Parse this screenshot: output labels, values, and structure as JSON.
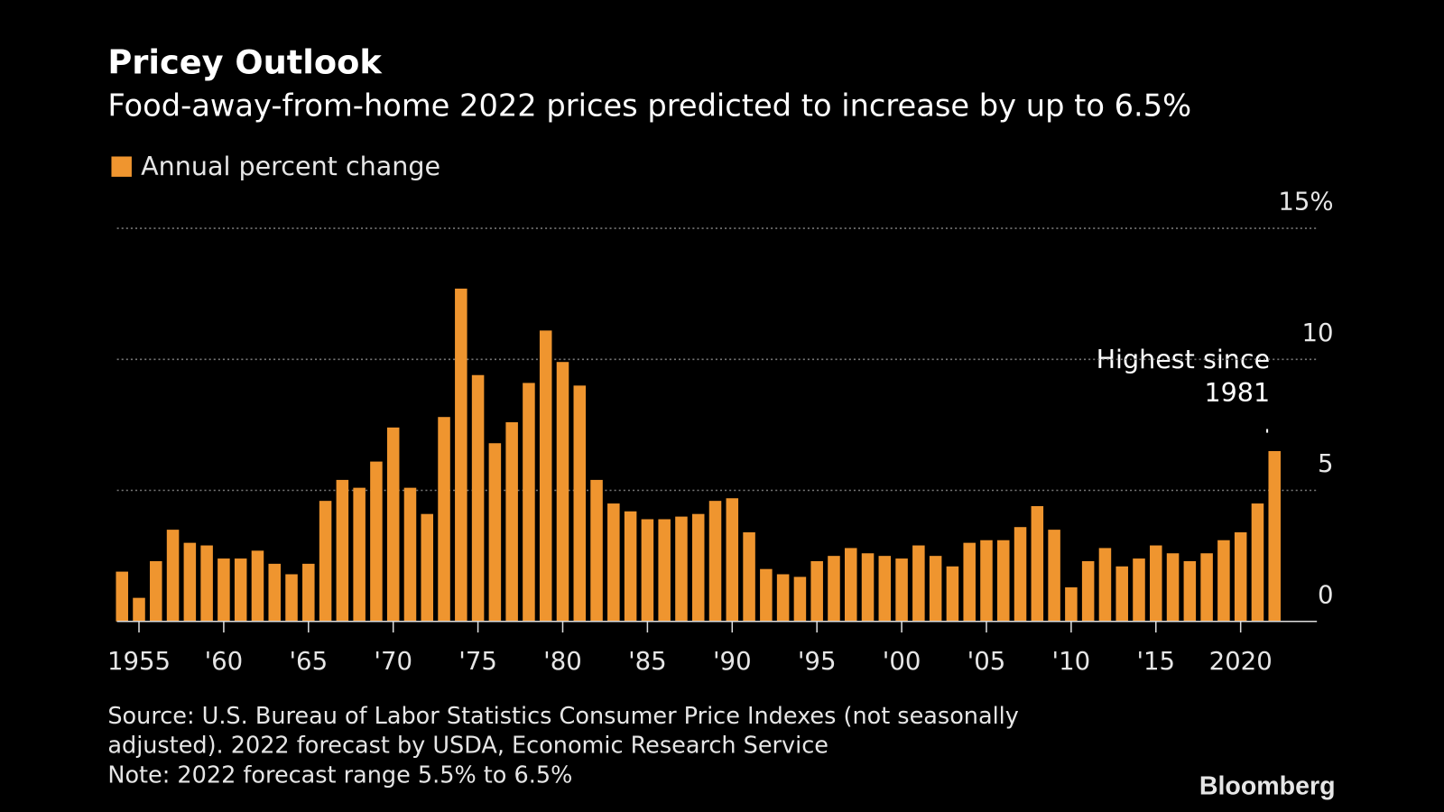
{
  "chart_data": {
    "type": "bar",
    "title": "Pricey Outlook",
    "subtitle": "Food-away-from-home 2022 prices predicted to increase by up to 6.5%",
    "series": [
      {
        "name": "Annual percent change",
        "color": "#ef952f",
        "values": [
          1.9,
          0.9,
          2.3,
          3.5,
          3.0,
          2.9,
          2.4,
          2.4,
          2.7,
          2.2,
          1.8,
          2.2,
          4.6,
          5.4,
          5.1,
          6.1,
          7.4,
          5.1,
          4.1,
          7.8,
          12.7,
          9.4,
          6.8,
          7.6,
          9.1,
          11.1,
          9.9,
          9.0,
          5.4,
          4.5,
          4.2,
          3.9,
          3.9,
          4.0,
          4.1,
          4.6,
          4.7,
          3.4,
          2.0,
          1.8,
          1.7,
          2.3,
          2.5,
          2.8,
          2.6,
          2.5,
          2.4,
          2.9,
          2.5,
          2.1,
          3.0,
          3.1,
          3.1,
          3.6,
          4.4,
          3.5,
          1.3,
          2.3,
          2.8,
          2.1,
          2.4,
          2.9,
          2.6,
          2.3,
          2.6,
          3.1,
          3.4,
          4.5,
          6.5
        ]
      }
    ],
    "x": [
      1954,
      1955,
      1956,
      1957,
      1958,
      1959,
      1960,
      1961,
      1962,
      1963,
      1964,
      1965,
      1966,
      1967,
      1968,
      1969,
      1970,
      1971,
      1972,
      1973,
      1974,
      1975,
      1976,
      1977,
      1978,
      1979,
      1980,
      1981,
      1982,
      1983,
      1984,
      1985,
      1986,
      1987,
      1988,
      1989,
      1990,
      1991,
      1992,
      1993,
      1994,
      1995,
      1996,
      1997,
      1998,
      1999,
      2000,
      2001,
      2002,
      2003,
      2004,
      2005,
      2006,
      2007,
      2008,
      2009,
      2010,
      2011,
      2012,
      2013,
      2014,
      2015,
      2016,
      2017,
      2018,
      2019,
      2020,
      2021,
      2022
    ],
    "xlim": [
      1953.7,
      2024.5
    ],
    "xticks": [
      1955,
      {
        "value": 1960,
        "label": "'60"
      },
      {
        "value": 1965,
        "label": "'65"
      },
      {
        "value": 1970,
        "label": "'70"
      },
      {
        "value": 1975,
        "label": "'75"
      },
      {
        "value": 1980,
        "label": "'80"
      },
      {
        "value": 1985,
        "label": "'85"
      },
      {
        "value": 1990,
        "label": "'90"
      },
      {
        "value": 1995,
        "label": "'95"
      },
      {
        "value": 2000,
        "label": "'00"
      },
      {
        "value": 2005,
        "label": "'05"
      },
      {
        "value": 2010,
        "label": "'10"
      },
      {
        "value": 2015,
        "label": "'15"
      },
      2020
    ],
    "ylim": [
      0,
      15
    ],
    "yticks": [
      0,
      5,
      10,
      {
        "value": 15,
        "label": "15%"
      }
    ],
    "grid": true,
    "annotation": {
      "lines": [
        "Highest since",
        "1981"
      ]
    },
    "source": [
      "Source: U.S. Bureau of Labor Statistics Consumer Price Indexes (not seasonally",
      "adjusted). 2022 forecast by USDA, Economic Research Service"
    ],
    "note": "Note: 2022 forecast range 5.5% to 6.5%",
    "logo": "Bloomberg"
  }
}
